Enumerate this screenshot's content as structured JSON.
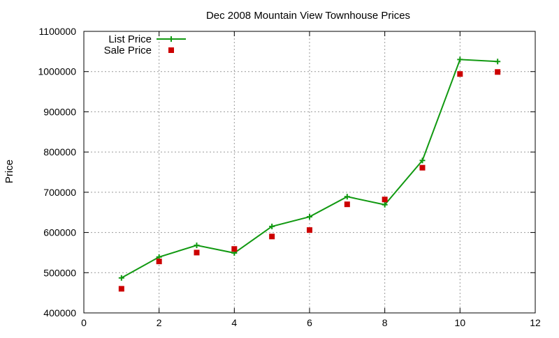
{
  "chart_data": {
    "type": "line",
    "title": "Dec 2008 Mountain View Townhouse Prices",
    "xlabel": "",
    "ylabel": "Price",
    "xlim": [
      0,
      12
    ],
    "ylim": [
      400000,
      1100000
    ],
    "x_ticks": [
      0,
      2,
      4,
      6,
      8,
      10,
      12
    ],
    "y_ticks": [
      400000,
      500000,
      600000,
      700000,
      800000,
      900000,
      1000000,
      1100000
    ],
    "grid": true,
    "legend_position": "top-left",
    "series": [
      {
        "name": "List Price",
        "style": "line-with-plus-markers",
        "color": "#119911",
        "x": [
          1,
          2,
          3,
          4,
          5,
          6,
          7,
          8,
          9,
          10,
          11
        ],
        "y": [
          487000,
          539000,
          568000,
          549000,
          615000,
          639000,
          689000,
          669000,
          779000,
          1030000,
          1025000
        ]
      },
      {
        "name": "Sale Price",
        "style": "square-points",
        "color": "#cc0000",
        "x": [
          1,
          2,
          3,
          4,
          5,
          6,
          7,
          8,
          9,
          10,
          11
        ],
        "y": [
          460000,
          528000,
          550000,
          559000,
          590000,
          606000,
          670000,
          682000,
          761000,
          994000,
          999000
        ]
      }
    ]
  }
}
